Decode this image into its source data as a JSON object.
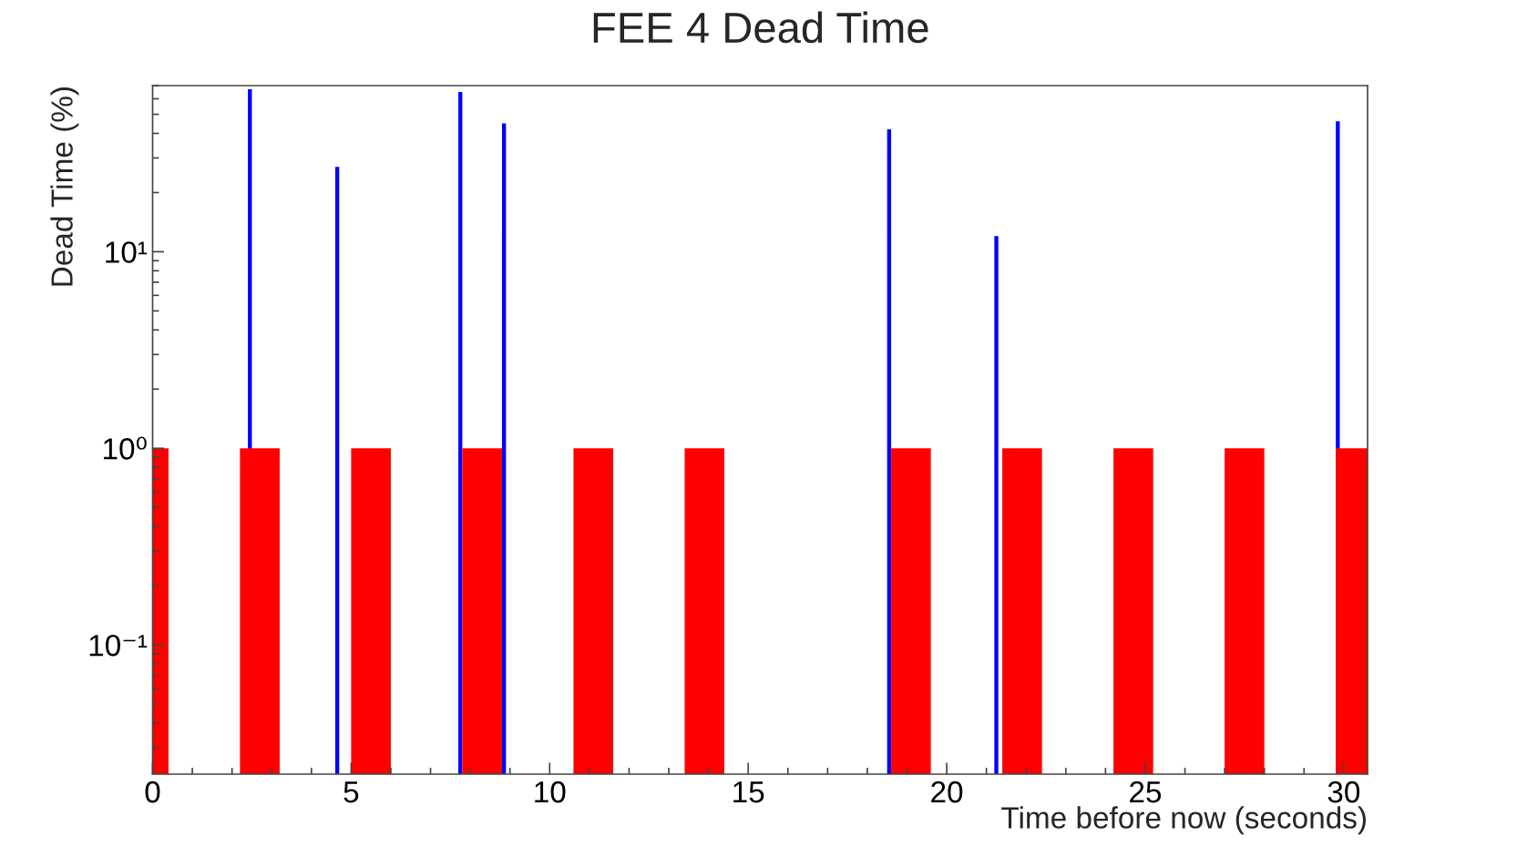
{
  "chart_data": {
    "type": "histogram",
    "title": "FEE 4 Dead Time",
    "xlabel": "Time before now (seconds)",
    "ylabel": "Dead Time (%)",
    "log": true,
    "bins": [
      0,
      0.4,
      2.2,
      2.4,
      2.5,
      3.2,
      4.6,
      4.7,
      5.0,
      6.0,
      7.7,
      7.8,
      8.8,
      8.9,
      10.6,
      11.6,
      13.4,
      14.4,
      18.5,
      18.6,
      19.6,
      21.2,
      21.3,
      21.4,
      22.4,
      24.2,
      25.2,
      27.0,
      28.0,
      29.8,
      29.9,
      30.6
    ],
    "series": [
      {
        "color": "#0000ff",
        "values": [
          null,
          null,
          null,
          67,
          null,
          null,
          27,
          null,
          null,
          null,
          65,
          null,
          45,
          null,
          null,
          null,
          null,
          null,
          42,
          null,
          null,
          12,
          null,
          null,
          null,
          null,
          null,
          null,
          null,
          46,
          null
        ]
      },
      {
        "color": "#ff0000",
        "values": [
          1,
          null,
          1,
          1,
          1,
          null,
          null,
          null,
          1,
          null,
          null,
          1,
          null,
          null,
          1,
          null,
          1,
          null,
          null,
          1,
          null,
          null,
          null,
          1,
          null,
          1,
          null,
          1,
          null,
          1,
          1
        ]
      }
    ],
    "xlim": [
      0,
      30.6
    ],
    "ylim": [
      0.022,
      70
    ],
    "xticks": [
      0,
      {
        "value": 1,
        "label": null
      },
      {
        "value": 2,
        "label": null
      },
      {
        "value": 3,
        "label": null
      },
      {
        "value": 4,
        "label": null
      },
      5,
      {
        "value": 6,
        "label": null
      },
      {
        "value": 7,
        "label": null
      },
      {
        "value": 8,
        "label": null
      },
      {
        "value": 9,
        "label": null
      },
      10,
      {
        "value": 11,
        "label": null
      },
      {
        "value": 12,
        "label": null
      },
      {
        "value": 13,
        "label": null
      },
      {
        "value": 14,
        "label": null
      },
      15,
      {
        "value": 16,
        "label": null
      },
      {
        "value": 17,
        "label": null
      },
      {
        "value": 18,
        "label": null
      },
      {
        "value": 19,
        "label": null
      },
      20,
      {
        "value": 21,
        "label": null
      },
      {
        "value": 22,
        "label": null
      },
      {
        "value": 23,
        "label": null
      },
      {
        "value": 24,
        "label": null
      },
      25,
      {
        "value": 26,
        "label": null
      },
      {
        "value": 27,
        "label": null
      },
      {
        "value": 28,
        "label": null
      },
      {
        "value": 29,
        "label": null
      },
      30
    ],
    "yticks": [
      {
        "value": 0.03,
        "label": null
      },
      {
        "value": 0.04,
        "label": null
      },
      {
        "value": 0.05,
        "label": null
      },
      {
        "value": 0.06,
        "label": null
      },
      {
        "value": 0.07,
        "label": null
      },
      {
        "value": 0.08,
        "label": null
      },
      {
        "value": 0.09,
        "label": null
      },
      {
        "value": 0.1,
        "label": "10⁻¹"
      },
      {
        "value": 0.2,
        "label": null
      },
      {
        "value": 0.3,
        "label": null
      },
      {
        "value": 0.4,
        "label": null
      },
      {
        "value": 0.5,
        "label": null
      },
      {
        "value": 0.6,
        "label": null
      },
      {
        "value": 0.7,
        "label": null
      },
      {
        "value": 0.8,
        "label": null
      },
      {
        "value": 0.9,
        "label": null
      },
      {
        "value": 1,
        "label": "10⁰"
      },
      {
        "value": 2,
        "label": null
      },
      {
        "value": 3,
        "label": null
      },
      {
        "value": 4,
        "label": null
      },
      {
        "value": 5,
        "label": null
      },
      {
        "value": 6,
        "label": null
      },
      {
        "value": 7,
        "label": null
      },
      {
        "value": 8,
        "label": null
      },
      {
        "value": 9,
        "label": null
      },
      {
        "value": 10,
        "label": "10¹"
      },
      {
        "value": 20,
        "label": null
      },
      {
        "value": 30,
        "label": null
      },
      {
        "value": 40,
        "label": null
      },
      {
        "value": 50,
        "label": null
      },
      {
        "value": 60,
        "label": null
      },
      {
        "value": 70,
        "label": null
      }
    ]
  }
}
